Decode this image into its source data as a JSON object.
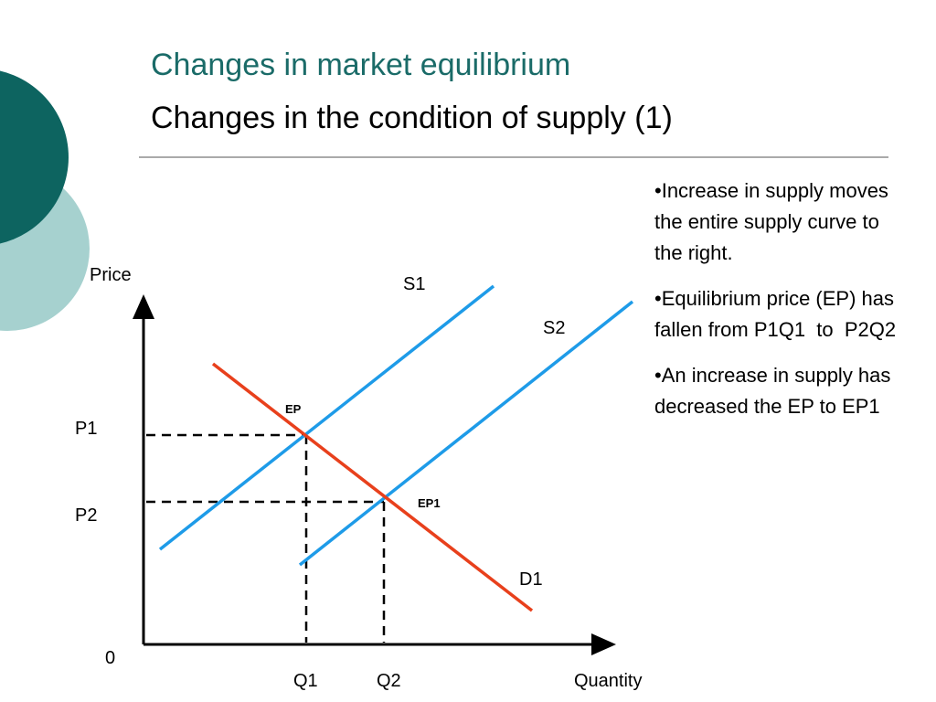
{
  "header": {
    "title": "Changes in market equilibrium",
    "subtitle": "Changes in the condition of supply (1)"
  },
  "diagram": {
    "y_axis_label": "Price",
    "x_axis_label": "Quantity",
    "origin_label": "0",
    "supply_1": "S1",
    "supply_2": "S2",
    "demand": "D1",
    "equilibrium_1": "EP",
    "equilibrium_2": "EP1",
    "price_1": "P1",
    "price_2": "P2",
    "quantity_1": "Q1",
    "quantity_2": "Q2"
  },
  "bullets": [
    "•Increase in supply moves the entire supply curve to the right.",
    "•Equilibrium price (EP) has fallen from P1Q1  to  P2Q2",
    "•An increase in supply has decreased the EP to EP1"
  ]
}
